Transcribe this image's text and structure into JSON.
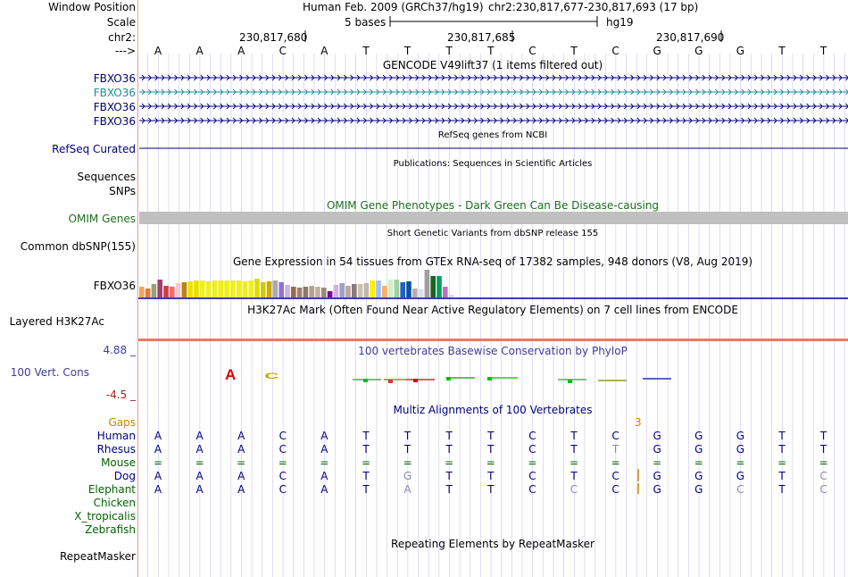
{
  "header": {
    "window_position_label": "Window Position",
    "scale_label": "Scale",
    "chr_label": "chr2:",
    "arrow_label": "--->",
    "assembly": "Human Feb. 2009 (GRCh37/hg19)",
    "position": "chr2:230,817,677-230,817,693 (17 bp)",
    "scale_text": "5 bases",
    "db": "hg19",
    "ticks": [
      "230,817,680",
      "230,817,685",
      "230,817,690"
    ],
    "bases": [
      "A",
      "A",
      "A",
      "C",
      "A",
      "T",
      "T",
      "T",
      "T",
      "C",
      "T",
      "C",
      "G",
      "G",
      "G",
      "T",
      "T"
    ]
  },
  "gencode": {
    "title": "GENCODE V49lift37 (1 items filtered out)",
    "genes": [
      "FBXO36",
      "FBXO36",
      "FBXO36",
      "FBXO36"
    ]
  },
  "refseq": {
    "label": "RefSeq Curated",
    "title": "RefSeq genes from NCBI"
  },
  "publications": {
    "sequences_label": "Sequences",
    "snps_label": "SNPs",
    "title": "Publications: Sequences in Scientific Articles"
  },
  "omim": {
    "title": "OMIM Gene Phenotypes - Dark Green Can Be Disease-causing",
    "label": "OMIM Genes"
  },
  "dbsnp": {
    "label": "Common dbSNP(155)",
    "title": "Short Genetic Variants from dbSNP release 155"
  },
  "gtex": {
    "title": "Gene Expression in 54 tissues from GTEx RNA-seq of 17382 samples, 948 donors (V8, Aug 2019)",
    "label": "FBXO36"
  },
  "h3k27ac": {
    "title": "H3K27Ac Mark (Often Found Near Active Regulatory Elements) on 7 cell lines from ENCODE",
    "label": "Layered H3K27Ac"
  },
  "phylop": {
    "title": "100 vertebrates Basewise Conservation by PhyloP",
    "label": "100 Vert. Cons",
    "ymax": "4.88 _",
    "ymin": "-4.5 _"
  },
  "multiz": {
    "title": "Multiz Alignments of 100 Vertebrates",
    "gaps_label": "Gaps",
    "gap_count": "3",
    "species": [
      {
        "name": "Human",
        "bases": [
          "A",
          "A",
          "A",
          "C",
          "A",
          "T",
          "T",
          "T",
          "T",
          "C",
          "T",
          "C",
          "G",
          "G",
          "G",
          "T",
          "T"
        ]
      },
      {
        "name": "Rhesus",
        "bases": [
          "A",
          "A",
          "A",
          "C",
          "A",
          "T",
          "T",
          "T",
          "T",
          "C",
          "T",
          "T",
          "G",
          "G",
          "G",
          "T",
          "T"
        ]
      },
      {
        "name": "Mouse",
        "bases": [
          "=",
          "=",
          "=",
          "=",
          "=",
          "=",
          "=",
          "=",
          "=",
          "=",
          "=",
          "=",
          "=",
          "=",
          "=",
          "=",
          "="
        ]
      },
      {
        "name": "Dog",
        "bases": [
          "A",
          "A",
          "A",
          "C",
          "A",
          "T",
          "G",
          "T",
          "T",
          "C",
          "T",
          "C",
          "G",
          "G",
          "G",
          "T",
          "C"
        ]
      },
      {
        "name": "Elephant",
        "bases": [
          "A",
          "A",
          "A",
          "C",
          "A",
          "T",
          "A",
          "T",
          "T",
          "C",
          "C",
          "C",
          "G",
          "G",
          "C",
          "T",
          "C"
        ]
      },
      {
        "name": "Chicken",
        "bases": []
      },
      {
        "name": "X_tropicalis",
        "bases": []
      },
      {
        "name": "Zebrafish",
        "bases": []
      }
    ]
  },
  "repeatmasker": {
    "title": "Repeating Elements by RepeatMasker",
    "label": "RepeatMasker"
  },
  "colors": {
    "navy": "#000080",
    "darkgreen": "#006400",
    "omim_green": "#1e6e1e",
    "gaps_orange": "#d08000",
    "phylop_blue": "#3c3ca0",
    "phylop_red": "#a02020",
    "teal": "#1e8ca0",
    "h3k27ac": "#f07860",
    "grid": "#c9c9ea"
  }
}
